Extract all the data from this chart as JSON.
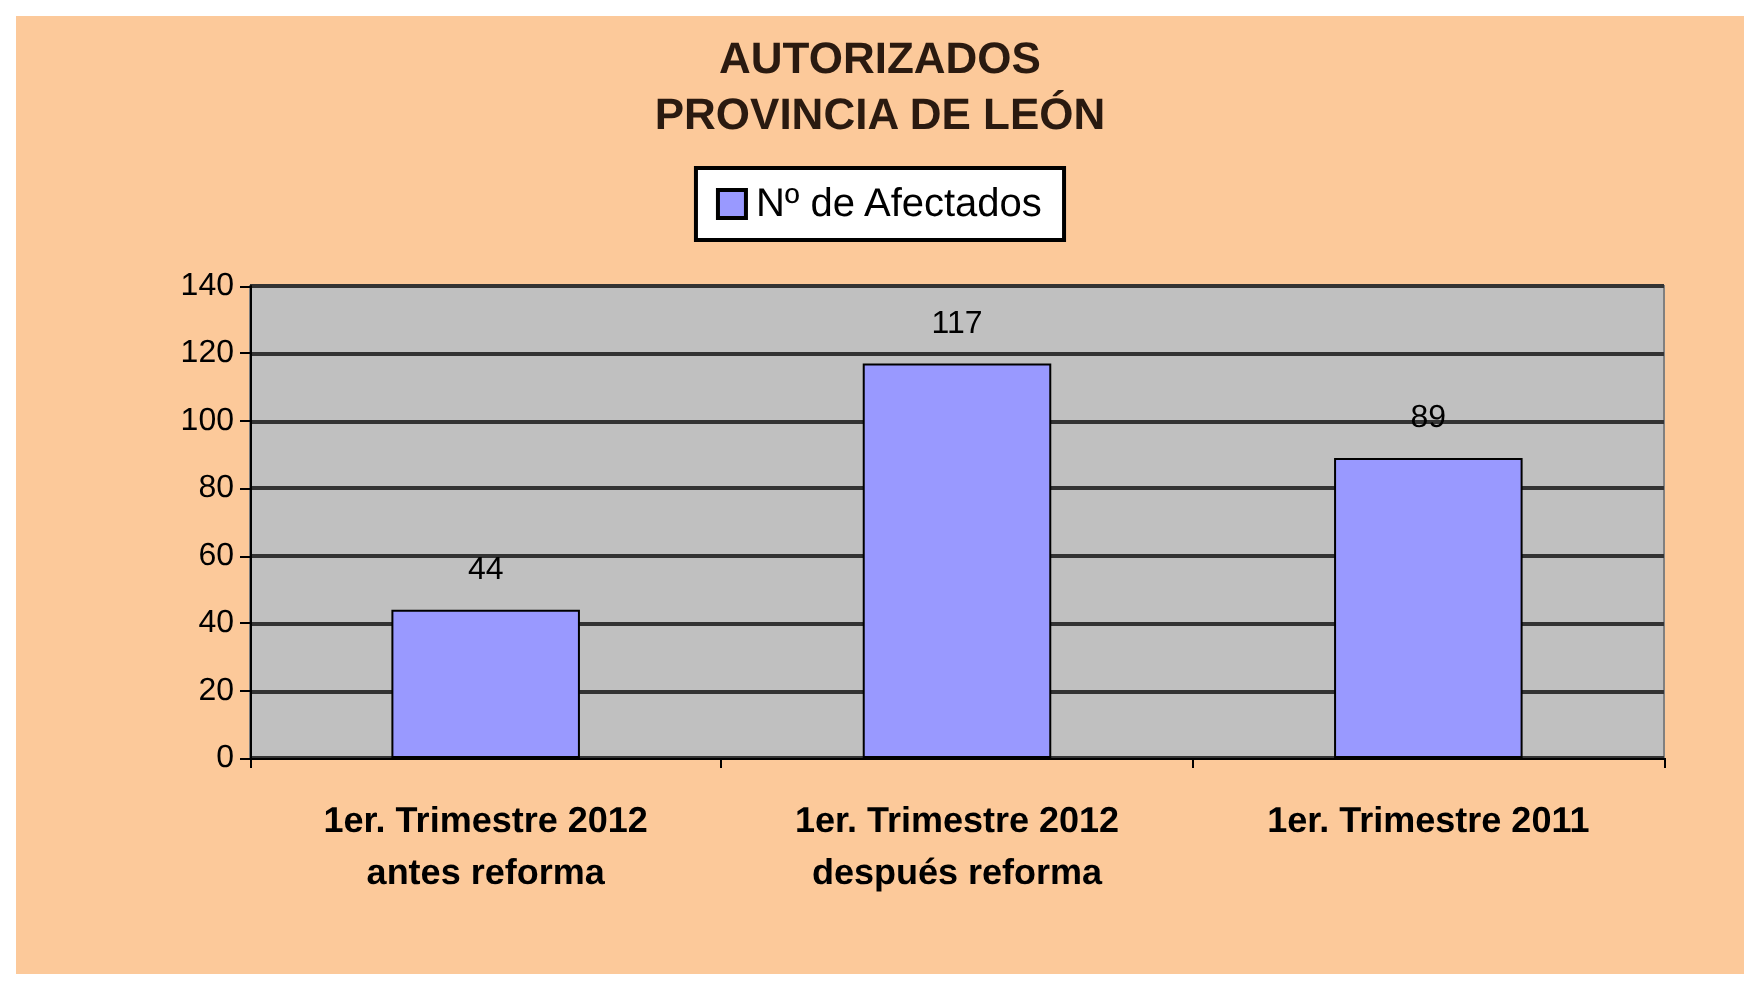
{
  "chart_data": {
    "type": "bar",
    "title": "AUTORIZADOS\nPROVINCIA DE LEÓN",
    "categories": [
      "1er. Trimestre 2012\nantes reforma",
      "1er. Trimestre 2012\ndespués reforma",
      "1er. Trimestre 2011"
    ],
    "series": [
      {
        "name": "Nº de Afectados",
        "color": "#9999ff",
        "values": [
          44,
          117,
          89
        ]
      }
    ],
    "ylim": [
      0,
      140
    ],
    "yticks": [
      0,
      20,
      40,
      60,
      80,
      100,
      120,
      140
    ],
    "grid": "y",
    "legend": "top",
    "data_labels": true
  }
}
